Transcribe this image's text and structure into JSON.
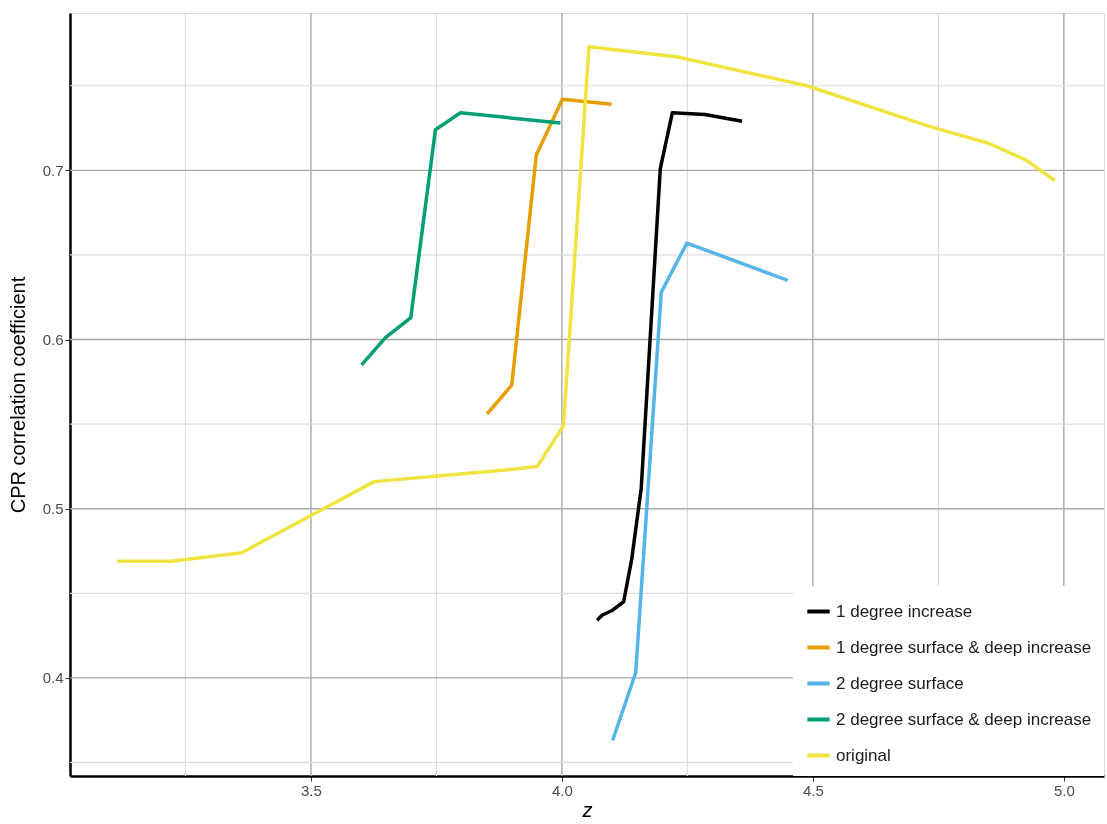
{
  "chart_data": {
    "type": "line",
    "xlabel": "z",
    "ylabel": "CPR correlation coefficient",
    "xlim": [
      3.02,
      5.08
    ],
    "ylim": [
      0.342,
      0.793
    ],
    "xticks": [
      {
        "value": 3.25,
        "label": null
      },
      3.5,
      {
        "value": 3.75,
        "label": null
      },
      {
        "value": 4.0,
        "label": "4.0"
      },
      {
        "value": 4.25,
        "label": null
      },
      4.5,
      {
        "value": 4.75,
        "label": null
      },
      {
        "value": 5.0,
        "label": "5.0"
      }
    ],
    "yticks": [
      {
        "value": 0.35,
        "label": null
      },
      0.4,
      {
        "value": 0.45,
        "label": null
      },
      0.5,
      {
        "value": 0.55,
        "label": null
      },
      0.6,
      {
        "value": 0.65,
        "label": null
      },
      0.7,
      {
        "value": 0.75,
        "label": null
      }
    ],
    "grid": true,
    "legend": "bottom right",
    "line_style": "solid",
    "marker": "none",
    "series": [
      {
        "name": "1 degree increase",
        "color": "#000000",
        "x": [
          4.07,
          4.08,
          4.101,
          4.123,
          4.139,
          4.158,
          4.196,
          4.22,
          4.285,
          4.359
        ],
        "values": [
          0.434,
          0.437,
          0.44,
          0.445,
          0.47,
          0.512,
          0.701,
          0.734,
          0.733,
          0.729
        ]
      },
      {
        "name": "1 degree surface & deep increase",
        "color": "#e69f00",
        "x": [
          3.851,
          3.9,
          3.949,
          4.001,
          4.099
        ],
        "values": [
          0.556,
          0.573,
          0.709,
          0.742,
          0.739
        ]
      },
      {
        "name": "2 degree surface",
        "color": "#56b4e9",
        "x": [
          4.101,
          4.147,
          4.198,
          4.249,
          4.45
        ],
        "values": [
          0.363,
          0.403,
          0.628,
          0.657,
          0.635
        ]
      },
      {
        "name": "2 degree surface & deep increase",
        "color": "#009e73",
        "x": [
          3.601,
          3.648,
          3.699,
          3.748,
          3.798,
          3.997
        ],
        "values": [
          0.585,
          0.601,
          0.613,
          0.724,
          0.734,
          0.728
        ]
      },
      {
        "name": "original",
        "color": "#f0e442",
        "x": [
          3.114,
          3.222,
          3.362,
          3.626,
          3.892,
          3.951,
          4.003,
          4.054,
          4.231,
          4.488,
          4.732,
          4.85,
          4.925,
          4.982
        ],
        "values": [
          0.469,
          0.469,
          0.474,
          0.516,
          0.523,
          0.525,
          0.549,
          0.773,
          0.767,
          0.75,
          0.726,
          0.716,
          0.706,
          0.694
        ]
      }
    ]
  }
}
